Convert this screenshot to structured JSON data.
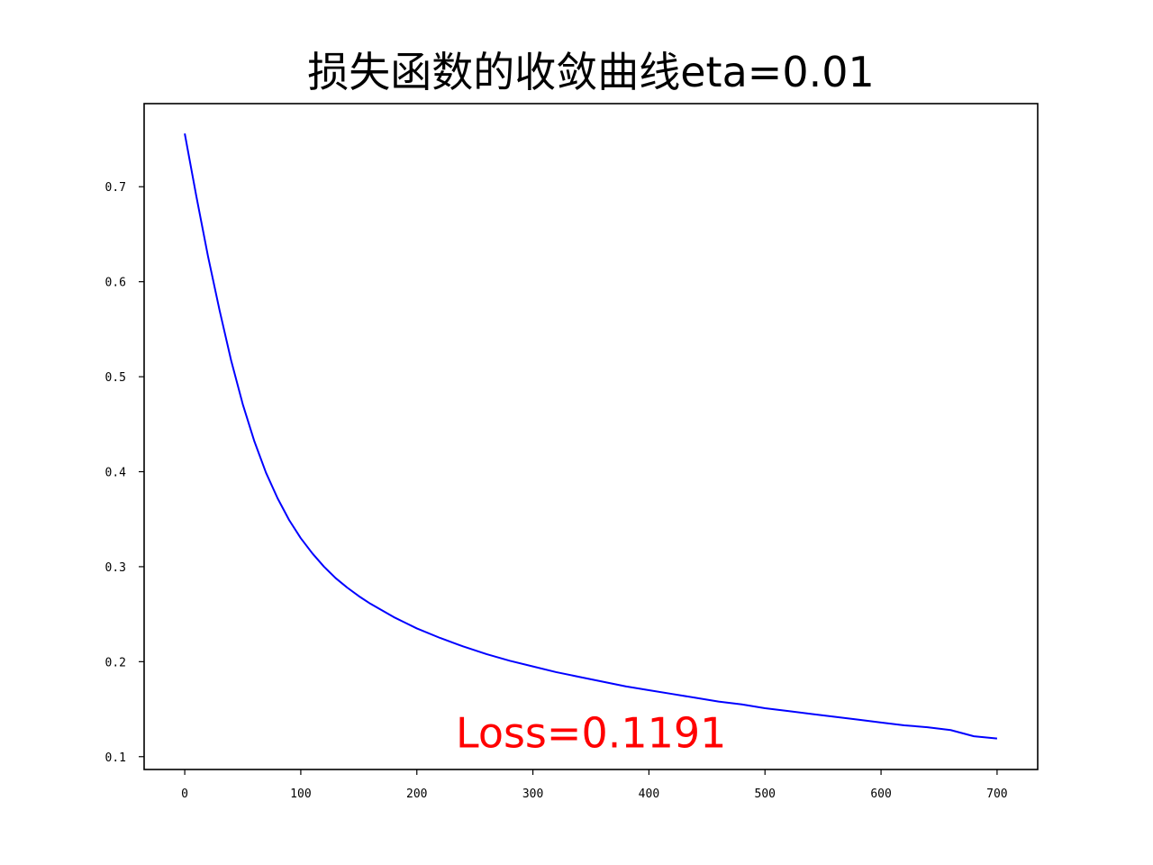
{
  "chart_data": {
    "type": "line",
    "title": "损失函数的收敛曲线eta=0.01",
    "xlabel": "",
    "ylabel": "",
    "xlim": [
      -35,
      735
    ],
    "ylim": [
      0.0865,
      0.7875
    ],
    "xticks": [
      0,
      100,
      200,
      300,
      400,
      500,
      600,
      700
    ],
    "xtick_labels": [
      "0",
      "100",
      "200",
      "300",
      "400",
      "500",
      "600",
      "700"
    ],
    "yticks": [
      0.1,
      0.2,
      0.3,
      0.4,
      0.5,
      0.6,
      0.7
    ],
    "ytick_labels": [
      "0.1",
      "0.2",
      "0.3",
      "0.4",
      "0.5",
      "0.6",
      "0.7"
    ],
    "grid": false,
    "legend": "none",
    "series": [
      {
        "color": "#0000ff",
        "x": [
          0,
          10,
          20,
          30,
          40,
          50,
          60,
          70,
          80,
          90,
          100,
          110,
          120,
          130,
          140,
          150,
          160,
          170,
          180,
          190,
          200,
          220,
          240,
          260,
          280,
          300,
          320,
          340,
          360,
          380,
          400,
          420,
          440,
          460,
          480,
          500,
          520,
          540,
          560,
          580,
          600,
          620,
          640,
          660,
          680,
          700
        ],
        "y": [
          0.756,
          0.69,
          0.627,
          0.57,
          0.517,
          0.471,
          0.432,
          0.399,
          0.372,
          0.349,
          0.33,
          0.314,
          0.3,
          0.288,
          0.278,
          0.269,
          0.261,
          0.254,
          0.247,
          0.241,
          0.235,
          0.225,
          0.216,
          0.208,
          0.201,
          0.195,
          0.189,
          0.184,
          0.179,
          0.174,
          0.17,
          0.166,
          0.162,
          0.158,
          0.155,
          0.151,
          0.148,
          0.145,
          0.142,
          0.139,
          0.136,
          0.133,
          0.131,
          0.128,
          0.1215,
          0.1191
        ]
      }
    ],
    "annotation": {
      "text": "Loss=0.1191",
      "x": 350,
      "y": 0.125,
      "color": "#ff0000"
    }
  }
}
